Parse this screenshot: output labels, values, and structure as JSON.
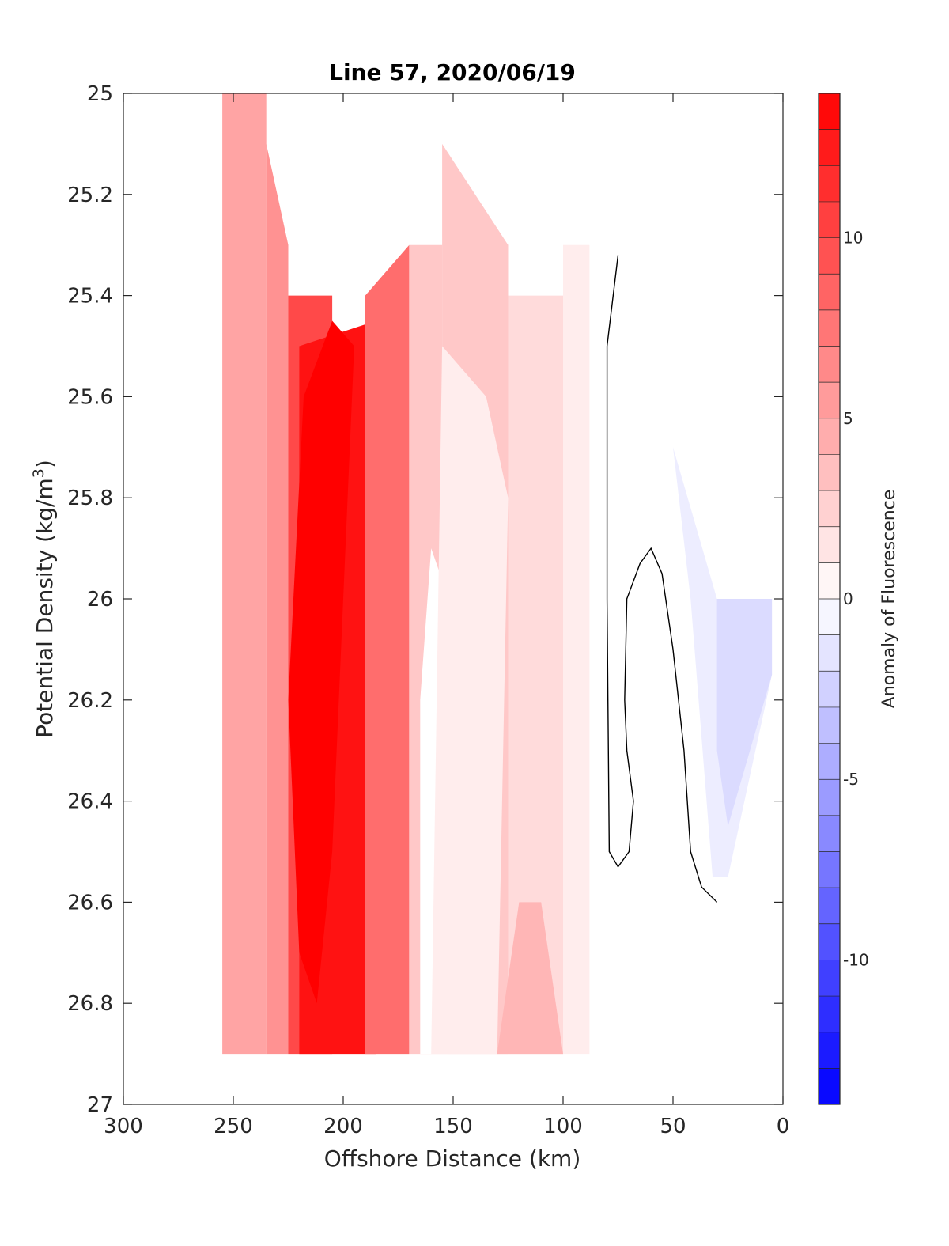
{
  "chart_data": {
    "type": "heatmap",
    "title": "Line 57, 2020/06/19",
    "xlabel": "Offshore Distance (km)",
    "ylabel_main": "Potential Density (kg/m",
    "ylabel_sup": "3",
    "ylabel_end": ")",
    "colorbar_label": "Anomaly of Fluorescence",
    "xlim": [
      300,
      0
    ],
    "ylim": [
      25,
      27
    ],
    "x_reversed": true,
    "y_reversed": true,
    "x_ticks": [
      300,
      250,
      200,
      150,
      100,
      50,
      0
    ],
    "x_tick_labels": [
      "300",
      "250",
      "200",
      "150",
      "100",
      "50",
      "0"
    ],
    "y_ticks": [
      25,
      25.2,
      25.4,
      25.6,
      25.8,
      26,
      26.2,
      26.4,
      26.6,
      26.8,
      27
    ],
    "y_tick_labels": [
      "25",
      "25.2",
      "25.4",
      "25.6",
      "25.8",
      "26",
      "26.2",
      "26.4",
      "26.6",
      "26.8",
      "27"
    ],
    "colorbar_range": [
      -14,
      14
    ],
    "colorbar_ticks": [
      10,
      5,
      0,
      -5,
      -10
    ],
    "colorbar_tick_labels": [
      "10",
      "5",
      "0",
      "-5",
      "-10"
    ],
    "colorbar_level_step": 1,
    "colormap": {
      "negative": "#0000ff",
      "zero": "#ffffff",
      "positive": "#ff0000"
    },
    "contour_color": "#000000",
    "bands": [
      {
        "x0": 255,
        "x1": 235,
        "top": [
          25.0,
          25.0
        ],
        "bottom": [
          26.9,
          26.9
        ],
        "anomaly": 5
      },
      {
        "x0": 235,
        "x1": 225,
        "top": [
          25.1,
          25.3
        ],
        "bottom": [
          26.9,
          26.9
        ],
        "anomaly": 6
      },
      {
        "x0": 225,
        "x1": 205,
        "top": [
          25.4,
          25.4
        ],
        "bottom": [
          26.9,
          26.9
        ],
        "anomaly": 10
      },
      {
        "x0": 220,
        "x1": 185,
        "top": [
          25.5,
          25.45
        ],
        "bottom": [
          26.9,
          26.9
        ],
        "anomaly": 13
      },
      {
        "x0": 190,
        "x1": 170,
        "top": [
          25.4,
          25.3
        ],
        "bottom": [
          26.9,
          26.9
        ],
        "anomaly": 8
      },
      {
        "x0": 170,
        "x1": 155,
        "top": [
          25.3,
          25.3
        ],
        "bottom": [
          26.9,
          26.9
        ],
        "anomaly": 3
      },
      {
        "x0": 155,
        "x1": 125,
        "top": [
          25.1,
          25.3
        ],
        "bottom": [
          26.9,
          26.9
        ],
        "anomaly": 3
      },
      {
        "x0": 125,
        "x1": 100,
        "top": [
          25.4,
          25.4
        ],
        "bottom": [
          26.9,
          26.9
        ],
        "anomaly": 2
      },
      {
        "x0": 100,
        "x1": 88,
        "top": [
          25.3,
          25.3
        ],
        "bottom": [
          26.9,
          26.9
        ],
        "anomaly": 1
      }
    ],
    "features": [
      {
        "name": "offshore core",
        "anomaly": 14,
        "points": [
          [
            205,
            25.45
          ],
          [
            195,
            25.5
          ],
          [
            200,
            26.0
          ],
          [
            205,
            26.5
          ],
          [
            212,
            26.8
          ],
          [
            220,
            26.7
          ],
          [
            225,
            26.2
          ],
          [
            218,
            25.6
          ]
        ]
      },
      {
        "name": "low patch",
        "anomaly": 0,
        "points": [
          [
            160,
            25.9
          ],
          [
            152,
            26.0
          ],
          [
            152,
            26.9
          ],
          [
            165,
            26.9
          ],
          [
            165,
            26.2
          ]
        ]
      },
      {
        "name": "mid patch",
        "anomaly": 1,
        "points": [
          [
            155,
            25.5
          ],
          [
            135,
            25.6
          ],
          [
            125,
            25.8
          ],
          [
            130,
            26.9
          ],
          [
            160,
            26.9
          ]
        ]
      },
      {
        "name": "deep patch",
        "anomaly": 4,
        "points": [
          [
            100,
            26.9
          ],
          [
            110,
            26.6
          ],
          [
            120,
            26.6
          ],
          [
            130,
            26.9
          ]
        ]
      },
      {
        "name": "inshore negative",
        "anomaly": -1,
        "points": [
          [
            50,
            25.7
          ],
          [
            30,
            26.0
          ],
          [
            5,
            26.0
          ],
          [
            5,
            26.15
          ],
          [
            25,
            26.55
          ],
          [
            32,
            26.55
          ],
          [
            42,
            26.0
          ]
        ]
      },
      {
        "name": "inshore negative core",
        "anomaly": -2,
        "points": [
          [
            30,
            26.0
          ],
          [
            5,
            26.0
          ],
          [
            5,
            26.15
          ],
          [
            15,
            26.3
          ],
          [
            25,
            26.45
          ],
          [
            30,
            26.3
          ]
        ]
      }
    ],
    "contours": [
      {
        "level": 0,
        "points": [
          [
            75,
            25.32
          ],
          [
            80,
            25.5
          ],
          [
            80,
            26.0
          ],
          [
            79,
            26.5
          ],
          [
            75,
            26.53
          ],
          [
            70,
            26.5
          ],
          [
            68,
            26.4
          ],
          [
            71,
            26.3
          ],
          [
            72,
            26.2
          ],
          [
            71,
            26.0
          ],
          [
            65,
            25.93
          ],
          [
            60,
            25.9
          ],
          [
            55,
            25.95
          ],
          [
            50,
            26.1
          ],
          [
            45,
            26.3
          ],
          [
            42,
            26.5
          ],
          [
            37,
            26.57
          ],
          [
            30,
            26.6
          ]
        ]
      }
    ]
  }
}
